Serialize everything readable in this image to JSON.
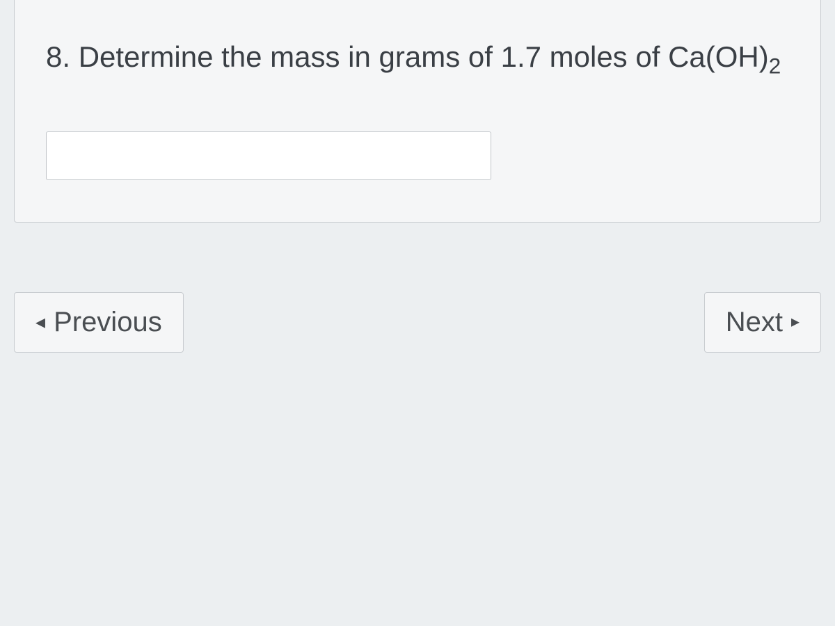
{
  "question": {
    "number": "8.",
    "text_before_formula": "Determine the mass in grams of 1.7 moles of",
    "formula_base": "Ca(OH)",
    "formula_subscript": "2",
    "answer_value": ""
  },
  "navigation": {
    "previous_label": "Previous",
    "next_label": "Next"
  },
  "colors": {
    "background": "#eceff1",
    "card_background": "#f5f6f7",
    "border": "#c8ccd0",
    "text": "#3a3f45",
    "input_background": "#ffffff",
    "input_border": "#c0c4c8"
  }
}
